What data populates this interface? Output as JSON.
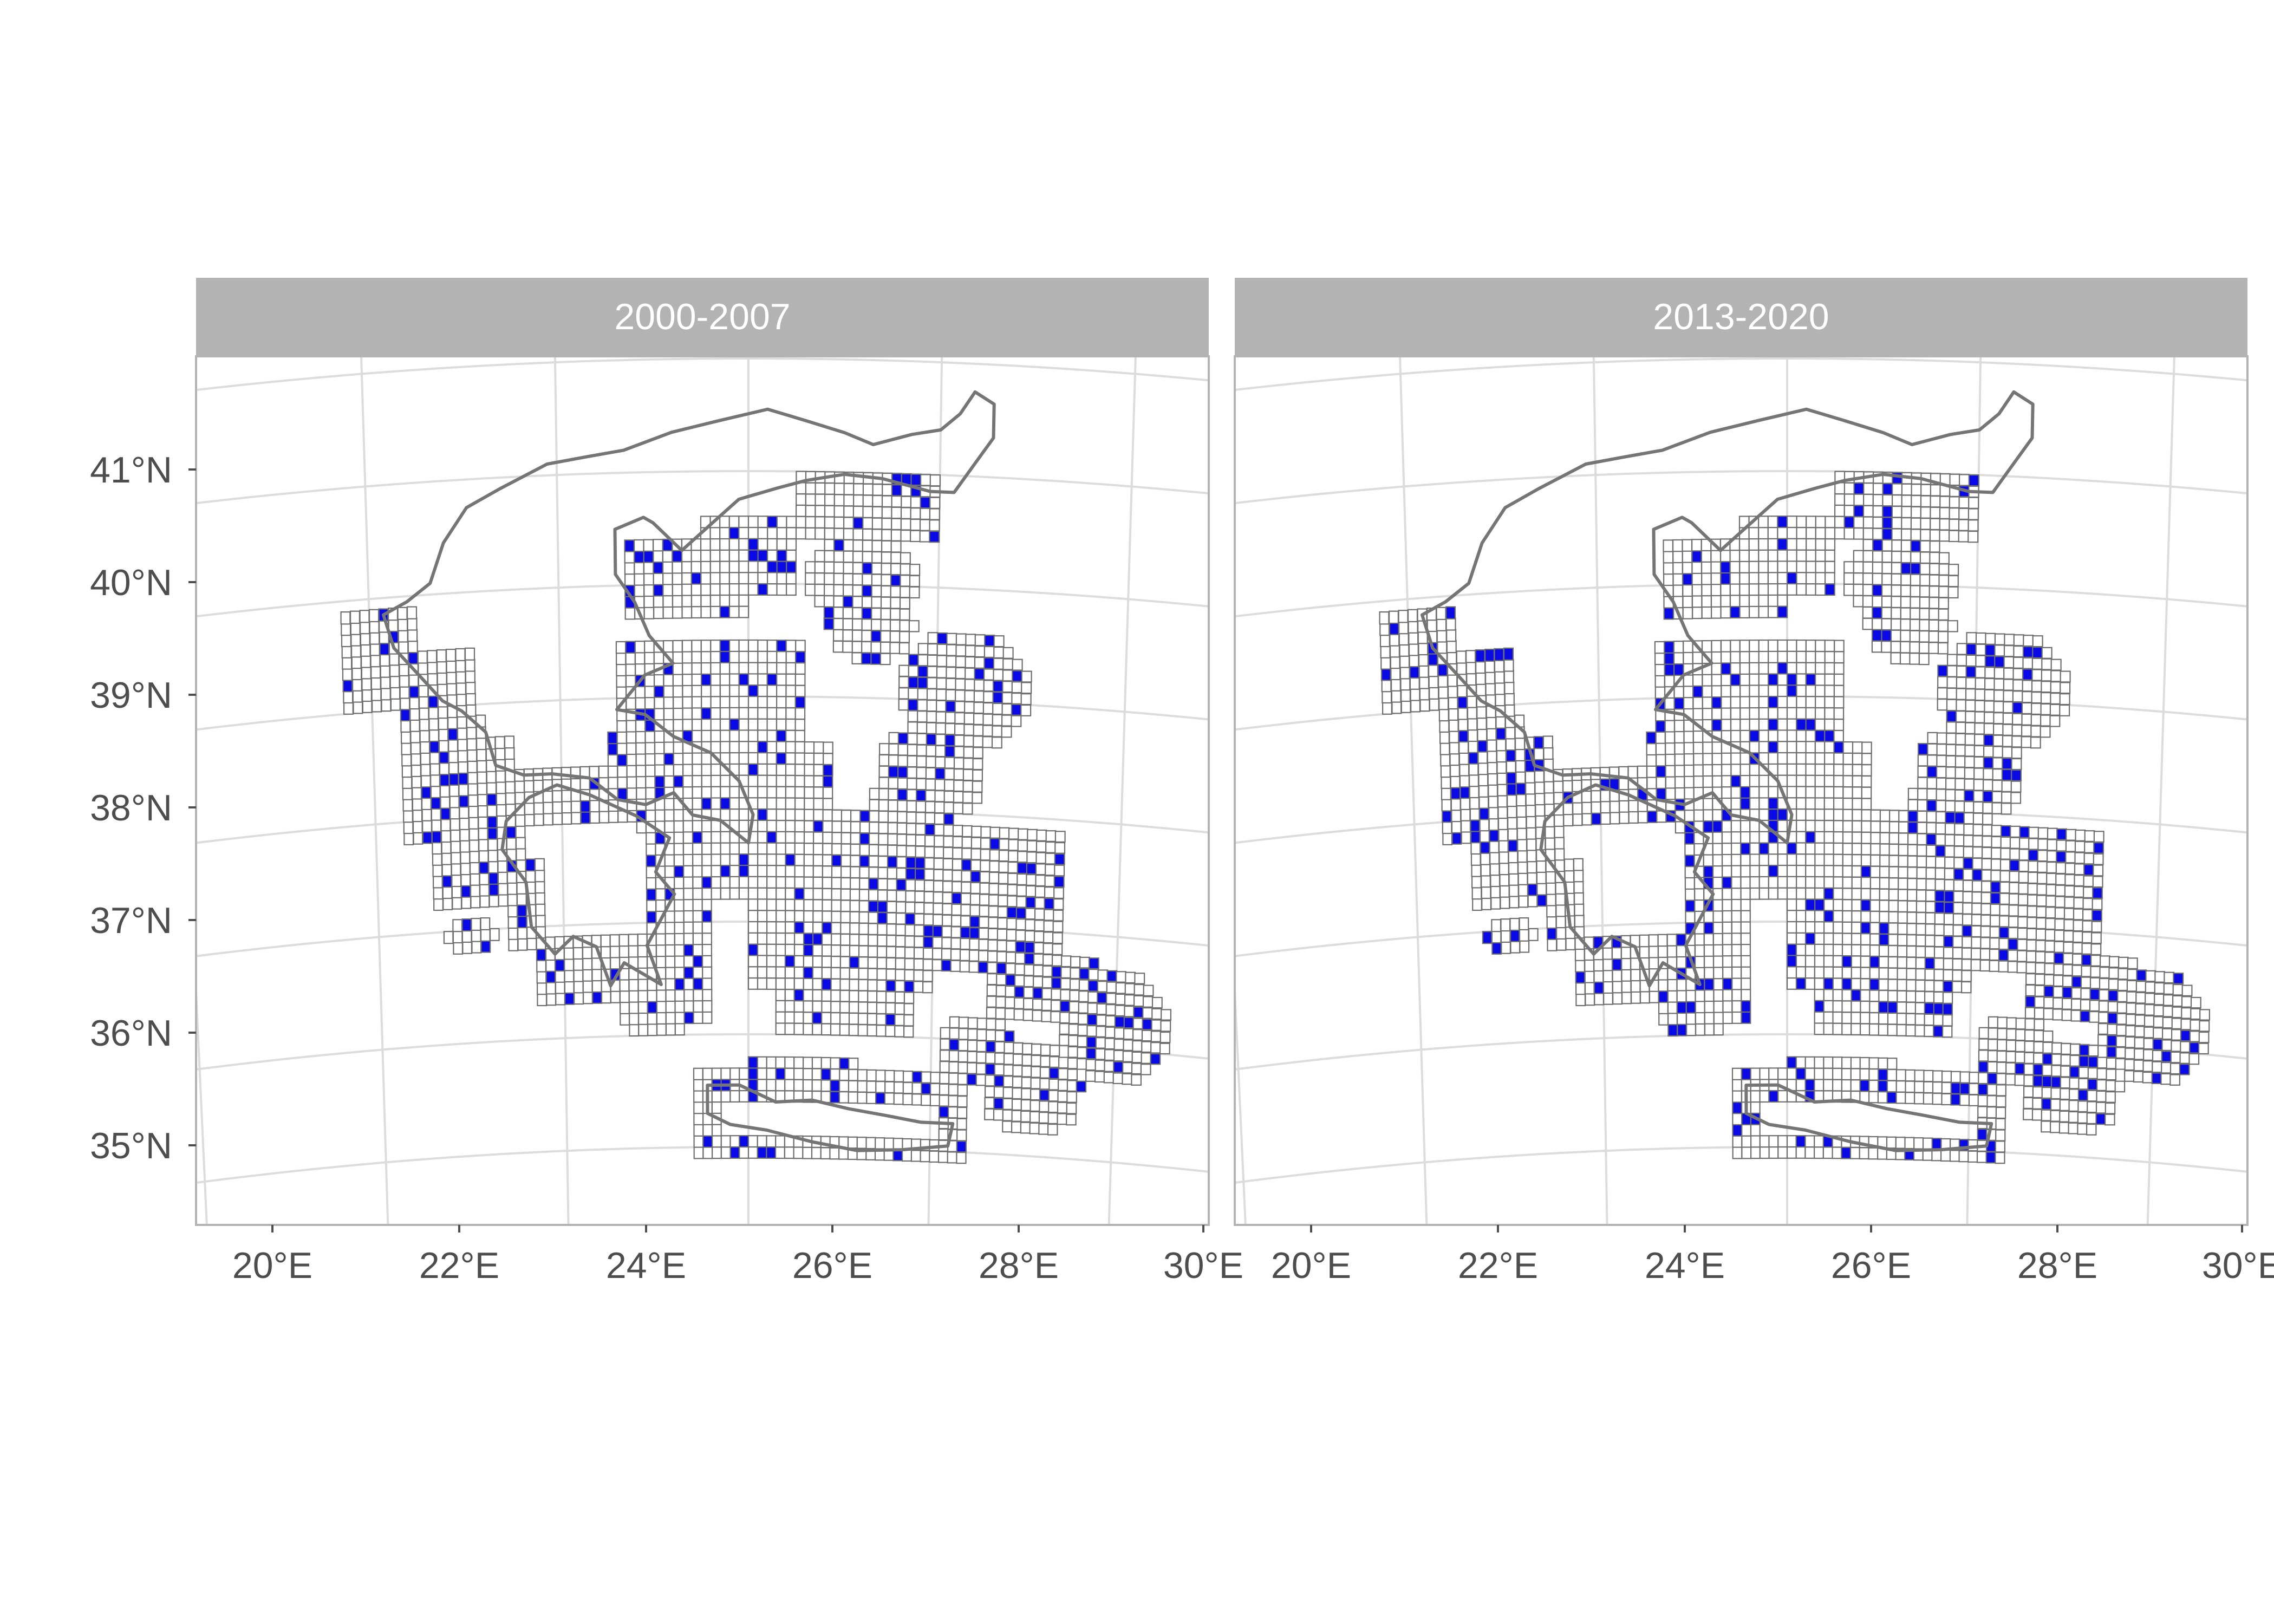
{
  "map": {
    "type": "faceted-grid-map",
    "region": "Greece",
    "facets": [
      {
        "label": "2000-2007",
        "seed": 7
      },
      {
        "label": "2013-2020",
        "seed": 23
      }
    ],
    "lon_ticks": [
      "20°E",
      "22°E",
      "24°E",
      "26°E",
      "28°E",
      "30°E"
    ],
    "lat_ticks": [
      "41°N",
      "40°N",
      "39°N",
      "38°N",
      "37°N",
      "36°N",
      "35°N"
    ],
    "lon_range": [
      19.2,
      30.0
    ],
    "lat_range": [
      34.3,
      42.0
    ],
    "colors": {
      "strip_fill": "#b3b3b3",
      "occupied_cell": "#0a0ae6",
      "empty_cell": "#ffffff",
      "cell_outline": "#6e6e6e",
      "country_outline": "#757575",
      "graticule": "#dcdcdc"
    }
  }
}
